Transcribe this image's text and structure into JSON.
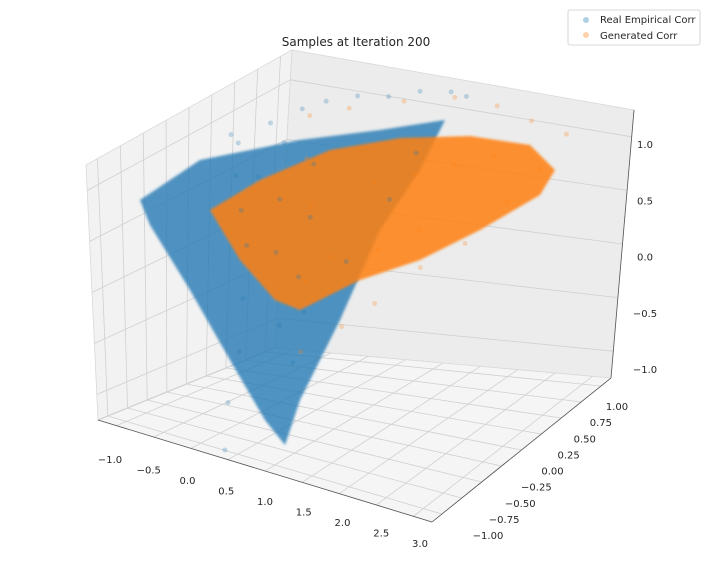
{
  "chart_data": {
    "type": "scatter",
    "projection": "3d",
    "title": "Samples at Iteration 200",
    "xlabel": "",
    "ylabel": "",
    "zlabel": "",
    "xlim": [
      -1.25,
      3.1
    ],
    "ylim": [
      -1.1,
      1.15
    ],
    "zlim": [
      -1.05,
      1.2
    ],
    "x_ticks": [
      "−1.0",
      "−0.5",
      "0.0",
      "0.5",
      "1.0",
      "1.5",
      "2.0",
      "2.5",
      "3.0"
    ],
    "y_ticks": [
      "−1.00",
      "−0.75",
      "−0.50",
      "−0.25",
      "0.00",
      "0.25",
      "0.50",
      "0.75",
      "1.00"
    ],
    "z_ticks": [
      "−1.0",
      "−0.5",
      "0.0",
      "0.5",
      "1.0"
    ],
    "grid": true,
    "legend_position": "top-right",
    "series": [
      {
        "name": "Real Empirical Corr",
        "color": "#1f77b4",
        "alpha": 0.25,
        "shape_vertices": [
          [
            -1.0,
            0.1,
            0.75
          ],
          [
            1.1,
            1.0,
            1.0
          ],
          [
            0.3,
            -1.0,
            -1.05
          ]
        ],
        "points": [
          [
            -1.0,
            0.1,
            0.75
          ],
          [
            -0.9,
            0.1,
            0.7
          ],
          [
            -0.7,
            0.3,
            0.8
          ],
          [
            -0.5,
            0.5,
            0.85
          ],
          [
            -0.3,
            0.6,
            0.9
          ],
          [
            0.0,
            0.7,
            0.95
          ],
          [
            0.3,
            0.8,
            0.95
          ],
          [
            0.6,
            0.9,
            1.0
          ],
          [
            0.9,
            1.0,
            1.0
          ],
          [
            1.1,
            1.0,
            1.0
          ],
          [
            -0.8,
            0.0,
            0.5
          ],
          [
            -0.6,
            -0.1,
            0.3
          ],
          [
            -0.4,
            -0.2,
            0.1
          ],
          [
            -0.2,
            -0.4,
            -0.2
          ],
          [
            0.0,
            -0.6,
            -0.5
          ],
          [
            0.1,
            -0.8,
            -0.8
          ],
          [
            0.3,
            -1.0,
            -1.05
          ],
          [
            -0.7,
            0.2,
            0.4
          ],
          [
            -0.5,
            0.3,
            0.2
          ],
          [
            -0.3,
            0.1,
            -0.1
          ],
          [
            0.2,
            -0.3,
            -0.4
          ],
          [
            0.4,
            -0.2,
            -0.3
          ],
          [
            0.5,
            -0.4,
            -0.6
          ],
          [
            0.6,
            0.1,
            0.0
          ],
          [
            0.8,
            0.4,
            0.4
          ],
          [
            0.9,
            0.6,
            0.7
          ],
          [
            -0.2,
            0.4,
            0.5
          ],
          [
            0.0,
            0.2,
            0.2
          ],
          [
            0.2,
            -0.1,
            -0.1
          ],
          [
            -0.6,
            0.4,
            0.6
          ]
        ]
      },
      {
        "name": "Generated Corr",
        "color": "#ff7f0e",
        "alpha": 0.25,
        "shape_vertices": [
          [
            -0.35,
            0.45,
            0.85
          ],
          [
            1.2,
            1.0,
            1.0
          ],
          [
            2.55,
            0.85,
            1.05
          ],
          [
            0.45,
            -0.25,
            -0.6
          ]
        ],
        "points": [
          [
            -0.35,
            0.45,
            0.85
          ],
          [
            0.0,
            0.6,
            0.9
          ],
          [
            0.5,
            0.8,
            0.95
          ],
          [
            1.0,
            0.95,
            1.0
          ],
          [
            1.5,
            1.0,
            1.0
          ],
          [
            2.0,
            0.95,
            1.0
          ],
          [
            2.55,
            0.85,
            1.05
          ],
          [
            2.4,
            0.7,
            0.8
          ],
          [
            2.2,
            0.5,
            0.6
          ],
          [
            1.9,
            0.3,
            0.3
          ],
          [
            1.5,
            0.15,
            0.1
          ],
          [
            1.1,
            0.0,
            -0.2
          ],
          [
            0.8,
            -0.1,
            -0.4
          ],
          [
            0.45,
            -0.25,
            -0.6
          ],
          [
            0.2,
            0.0,
            -0.2
          ],
          [
            0.0,
            0.2,
            0.3
          ],
          [
            -0.2,
            0.3,
            0.6
          ],
          [
            0.6,
            0.4,
            0.5
          ],
          [
            1.0,
            0.5,
            0.6
          ],
          [
            1.4,
            0.6,
            0.7
          ],
          [
            1.8,
            0.7,
            0.8
          ],
          [
            0.9,
            0.2,
            0.1
          ],
          [
            1.3,
            0.3,
            0.3
          ],
          [
            0.4,
            0.1,
            0.0
          ]
        ]
      }
    ]
  }
}
